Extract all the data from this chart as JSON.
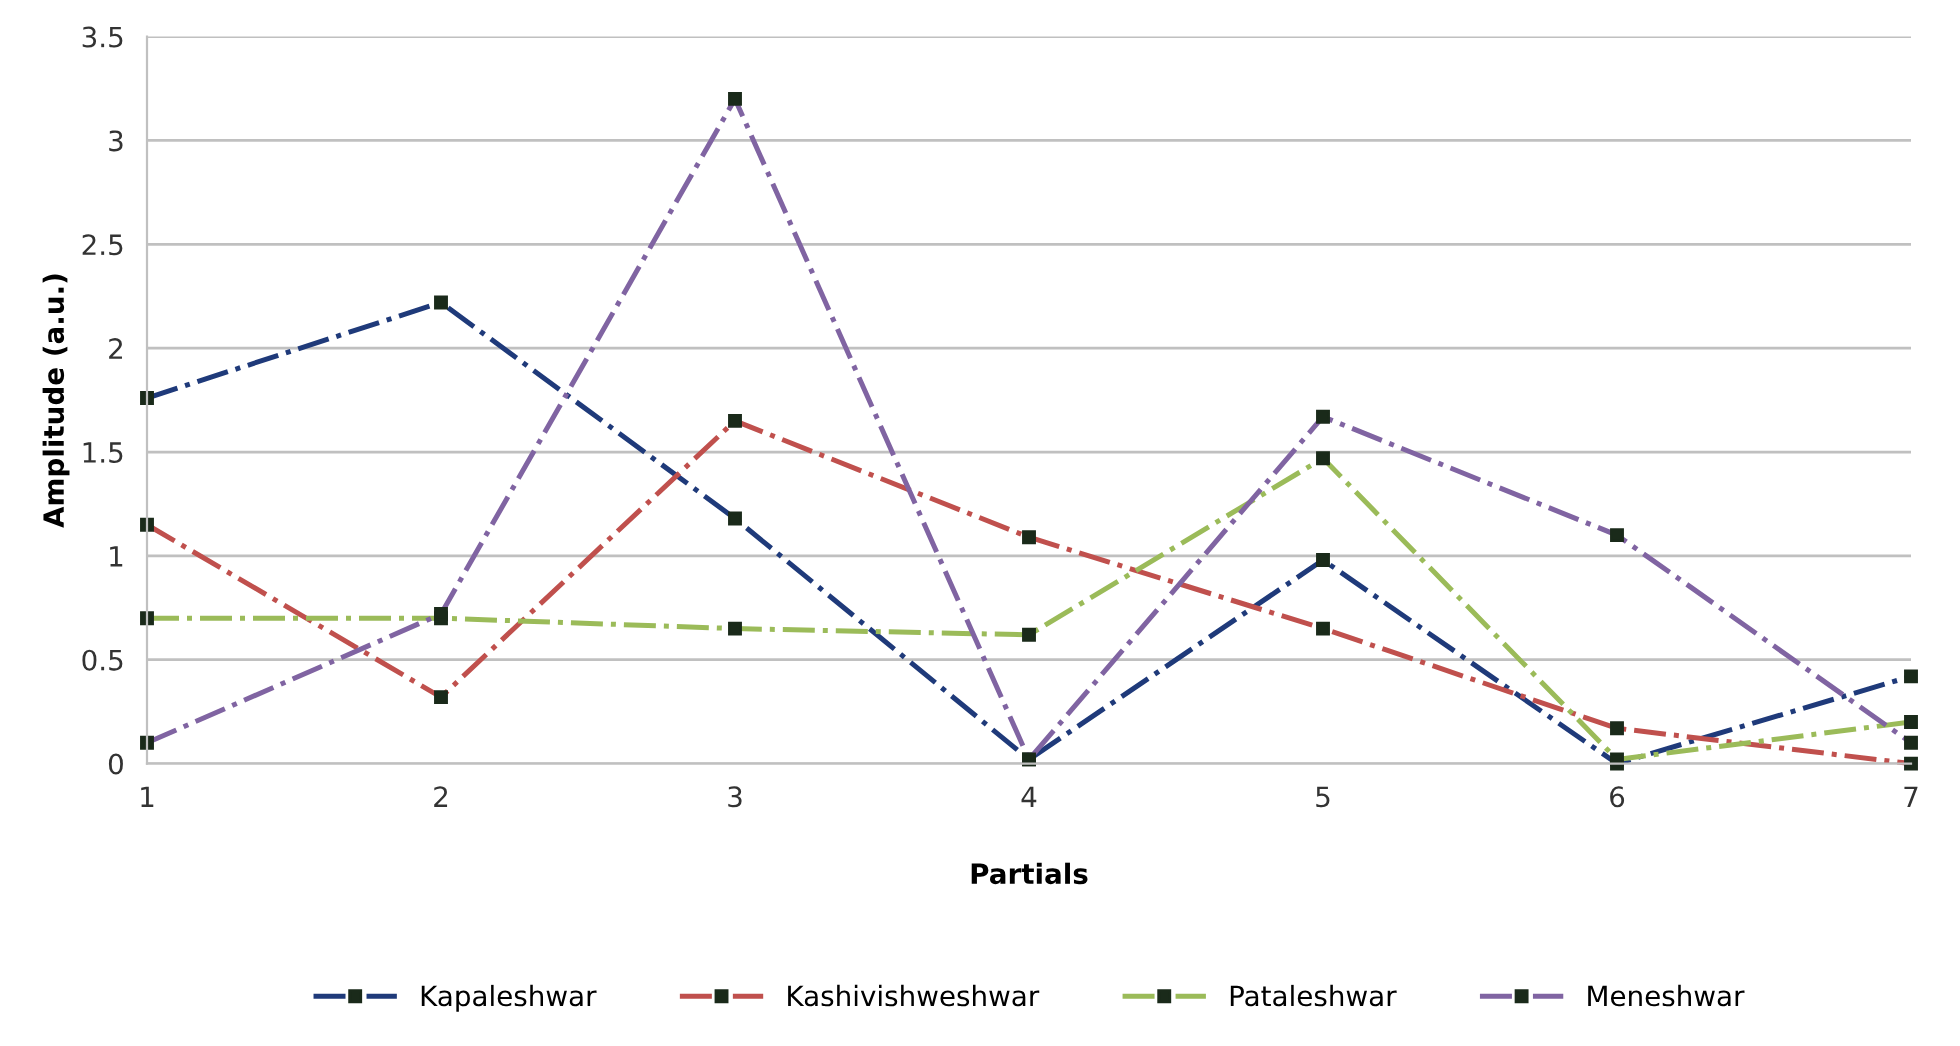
{
  "chart_data": {
    "type": "line",
    "xlabel": "Partials",
    "ylabel": "Amplitude (a.u.)",
    "x": [
      1,
      2,
      3,
      4,
      5,
      6,
      7
    ],
    "series": [
      {
        "name": "Kapaleshwar",
        "color": "#1f3a7a",
        "values": [
          1.76,
          2.22,
          1.18,
          0.02,
          0.98,
          0,
          0.42
        ]
      },
      {
        "name": "Kashivishweshwar",
        "color": "#c0504d",
        "values": [
          1.15,
          0.32,
          1.65,
          1.09,
          0.65,
          0.17,
          0
        ]
      },
      {
        "name": "Pataleshwar",
        "color": "#9bbb59",
        "values": [
          0.7,
          0.7,
          0.65,
          0.62,
          1.47,
          0.02,
          0.2
        ]
      },
      {
        "name": "Meneshwar",
        "color": "#8064a2",
        "values": [
          0.1,
          0.72,
          3.2,
          0.02,
          1.67,
          1.1,
          0.1
        ]
      }
    ],
    "xlim": [
      1,
      7
    ],
    "xticks": [
      1,
      2,
      3,
      4,
      5,
      6,
      7
    ],
    "ylim": [
      0,
      3.5
    ],
    "yticks": [
      0,
      0.5,
      1,
      1.5,
      2,
      2.5,
      3,
      3.5
    ],
    "grid": "y",
    "legend": "bottom",
    "marker": "square",
    "line_style": "dashed"
  }
}
